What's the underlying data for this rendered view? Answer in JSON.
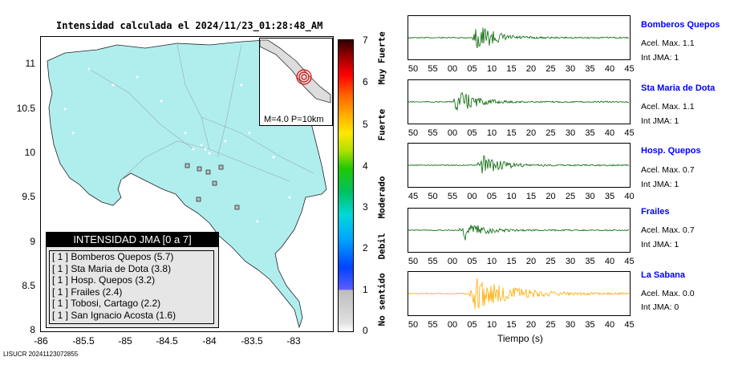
{
  "map": {
    "title": "Intensidad calculada el 2024/11/23_01:28:48_AM",
    "y_ticks": [
      "11",
      "10.5",
      "10",
      "9.5",
      "9",
      "8.5",
      "8"
    ],
    "x_ticks": [
      "-86",
      "-85.5",
      "-85",
      "-84.5",
      "-84",
      "-83.5",
      "-83"
    ],
    "land_color": "#b0eeee",
    "inset_label": "M=4.0 P=10km"
  },
  "legend": {
    "title": "INTENSIDAD JMA [0 a 7]",
    "items": [
      "[ 1 ]  Bomberos Quepos (5.7)",
      "[ 1 ]  Sta Maria de Dota (3.8)",
      "[ 1 ]  Hosp. Quepos (3.2)",
      "[ 1 ]  Frailes (2.4)",
      "[ 1 ]  Tobosi, Cartago (2.2)",
      "[ 1 ]  San Ignacio Acosta (1.6)"
    ]
  },
  "colorbar": {
    "levels": [
      "7",
      "6",
      "5",
      "4",
      "3",
      "2",
      "1",
      "0"
    ],
    "categories": [
      "Muy Fuerte",
      "Fuerte",
      "Moderado",
      "Debil",
      "No sentido"
    ]
  },
  "stations": [
    {
      "name": "Bomberos Quepos",
      "acel": "Acel. Max. 1.1",
      "int": "Int JMA: 1",
      "ticks": [
        "50",
        "55",
        "00",
        "05",
        "10",
        "15",
        "20",
        "25",
        "30",
        "35",
        "40",
        "45"
      ],
      "color": "#006400"
    },
    {
      "name": "Sta Maria de Dota",
      "acel": "Acel. Max. 1.1",
      "int": "Int JMA: 1",
      "ticks": [
        "50",
        "55",
        "00",
        "05",
        "10",
        "15",
        "20",
        "25",
        "30",
        "35",
        "40",
        "45"
      ],
      "color": "#006400"
    },
    {
      "name": "Hosp. Quepos",
      "acel": "Acel. Max. 0.7",
      "int": "Int JMA: 1",
      "ticks": [
        "45",
        "50",
        "55",
        "00",
        "05",
        "10",
        "15",
        "20",
        "25",
        "30",
        "35",
        "40"
      ],
      "color": "#006400"
    },
    {
      "name": "Frailes",
      "acel": "Acel. Max. 0.7",
      "int": "Int JMA: 1",
      "ticks": [
        "50",
        "55",
        "00",
        "05",
        "10",
        "15",
        "20",
        "25",
        "30",
        "35",
        "40",
        "45"
      ],
      "color": "#006400"
    },
    {
      "name": "La Sabana",
      "acel": "Acel. Max. 0.0",
      "int": "Int JMA: 0",
      "ticks": [
        "50",
        "55",
        "00",
        "05",
        "10",
        "15",
        "20",
        "25",
        "30",
        "35",
        "40",
        "45"
      ],
      "color": "#ffaa00"
    }
  ],
  "time_axis_label": "Tiempo (s)",
  "footer_id": "LISUCR 20241123072855"
}
